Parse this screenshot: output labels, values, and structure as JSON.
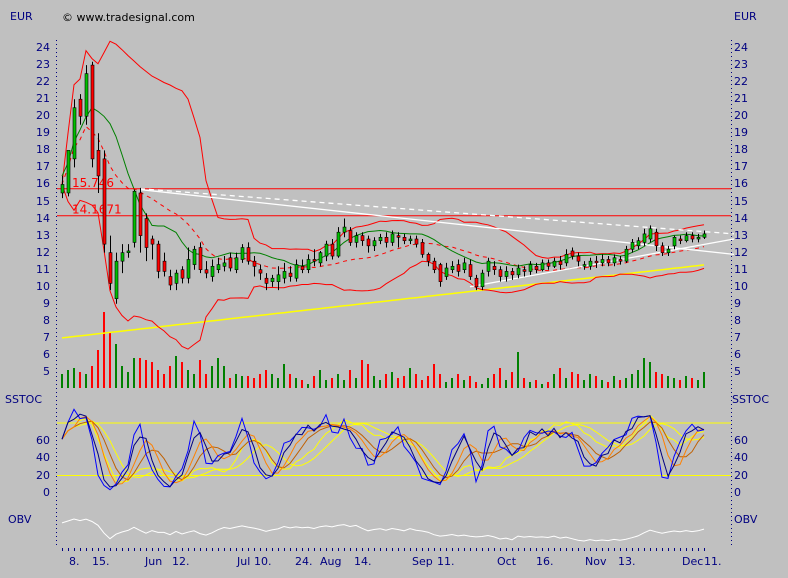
{
  "header": {
    "currency_left": "EUR",
    "currency_right": "EUR",
    "copyright": "© www.tradesignal.com"
  },
  "colors": {
    "background": "#c0c0c0",
    "axis_text": "#000080",
    "up_candle": "#00c000",
    "down_candle": "#ff0000",
    "bollinger": "#ff0000",
    "channel": "#008000",
    "long_average": "#ffff00",
    "trendline": "#ffffff",
    "stoch_fast": "#000080",
    "stoch_k": "#0000ff",
    "stoch_d": "#ff8000",
    "stoch_d2": "#c06000",
    "stoch_levels": "#ffff00",
    "obv": "#ffffff"
  },
  "chart_data": {
    "type": "candlestick",
    "y_ticks": [
      5,
      6,
      7,
      8,
      9,
      10,
      11,
      12,
      13,
      14,
      15,
      16,
      17,
      18,
      19,
      20,
      21,
      22,
      23,
      24
    ],
    "ylim": [
      4.2,
      25.5
    ],
    "x_tick_labels": [
      "8.",
      "15.",
      "Jun",
      "12.",
      "Jul",
      "10.",
      "24.",
      "Aug",
      "14.",
      "Sep",
      "11.",
      "Oct",
      "16.",
      "Nov",
      "13.",
      "Dec",
      "11."
    ],
    "candles_ohlc": [
      [
        15.5,
        16.5,
        15.2,
        16.0
      ],
      [
        15.5,
        18.0,
        15.3,
        18.0
      ],
      [
        17.5,
        21.0,
        17.0,
        20.5
      ],
      [
        21.0,
        21.3,
        19.5,
        20.0
      ],
      [
        20.0,
        23.0,
        19.5,
        22.5
      ],
      [
        23.0,
        23.2,
        17.0,
        17.5
      ],
      [
        18.0,
        19.0,
        15.5,
        16.5
      ],
      [
        17.5,
        18.0,
        12.0,
        12.5
      ],
      [
        12.0,
        13.0,
        9.8,
        10.2
      ],
      [
        9.3,
        12.0,
        9.0,
        11.5
      ],
      [
        11.5,
        12.5,
        10.8,
        12.0
      ],
      [
        12.0,
        12.5,
        11.7,
        12.1
      ],
      [
        12.6,
        15.7,
        12.3,
        15.6
      ],
      [
        15.5,
        15.8,
        12.0,
        13.0
      ],
      [
        14.0,
        14.3,
        11.5,
        12.3
      ],
      [
        12.8,
        13.0,
        11.6,
        12.5
      ],
      [
        12.5,
        12.7,
        10.5,
        10.9
      ],
      [
        11.5,
        12.0,
        10.6,
        10.9
      ],
      [
        10.6,
        11.0,
        9.8,
        10.1
      ],
      [
        10.2,
        11.0,
        9.8,
        10.8
      ],
      [
        11.0,
        11.2,
        10.2,
        10.5
      ],
      [
        10.5,
        12.3,
        10.2,
        11.6
      ],
      [
        11.3,
        12.4,
        11.0,
        12.2
      ],
      [
        12.3,
        12.6,
        10.8,
        11.0
      ],
      [
        11.0,
        11.5,
        10.5,
        10.8
      ],
      [
        10.6,
        11.6,
        10.3,
        11.2
      ],
      [
        11.0,
        11.7,
        10.8,
        11.3
      ],
      [
        11.2,
        11.8,
        10.9,
        11.4
      ],
      [
        11.7,
        12.0,
        10.9,
        11.1
      ],
      [
        11.0,
        12.0,
        10.8,
        11.7
      ],
      [
        11.6,
        12.5,
        11.4,
        12.3
      ],
      [
        12.3,
        12.6,
        11.3,
        11.5
      ],
      [
        11.5,
        11.8,
        10.6,
        11.2
      ],
      [
        11.0,
        11.3,
        10.4,
        10.8
      ],
      [
        10.5,
        10.8,
        9.8,
        10.2
      ],
      [
        10.3,
        10.7,
        10.0,
        10.5
      ],
      [
        10.3,
        11.2,
        9.8,
        10.7
      ],
      [
        10.5,
        11.4,
        10.2,
        10.9
      ],
      [
        10.8,
        11.2,
        10.3,
        10.6
      ],
      [
        10.5,
        11.6,
        10.3,
        11.3
      ],
      [
        11.2,
        11.6,
        10.8,
        11.0
      ],
      [
        11.0,
        11.9,
        10.8,
        11.6
      ],
      [
        11.6,
        12.2,
        11.2,
        11.5
      ],
      [
        11.4,
        12.1,
        11.2,
        12.0
      ],
      [
        11.8,
        12.7,
        11.5,
        12.5
      ],
      [
        12.5,
        12.8,
        11.6,
        11.8
      ],
      [
        11.8,
        13.5,
        11.7,
        13.2
      ],
      [
        13.2,
        14.0,
        12.9,
        13.5
      ],
      [
        13.3,
        13.5,
        12.4,
        12.6
      ],
      [
        12.6,
        13.2,
        12.3,
        13.0
      ],
      [
        13.0,
        13.2,
        12.4,
        12.7
      ],
      [
        12.8,
        13.0,
        12.0,
        12.4
      ],
      [
        12.4,
        12.9,
        12.1,
        12.7
      ],
      [
        12.7,
        13.1,
        12.5,
        12.9
      ],
      [
        12.9,
        13.2,
        12.3,
        12.6
      ],
      [
        12.6,
        13.3,
        12.4,
        13.1
      ],
      [
        13.0,
        13.2,
        12.3,
        12.9
      ],
      [
        12.9,
        13.1,
        12.5,
        12.7
      ],
      [
        12.7,
        13.0,
        12.5,
        12.8
      ],
      [
        12.8,
        13.0,
        12.3,
        12.5
      ],
      [
        12.6,
        12.8,
        11.7,
        11.9
      ],
      [
        11.9,
        12.0,
        11.2,
        11.5
      ],
      [
        11.5,
        11.7,
        10.8,
        11.0
      ],
      [
        11.3,
        11.4,
        10.0,
        10.3
      ],
      [
        10.6,
        11.4,
        10.4,
        11.1
      ],
      [
        11.0,
        11.5,
        10.8,
        11.2
      ],
      [
        11.3,
        11.6,
        10.6,
        10.9
      ],
      [
        11.0,
        11.7,
        10.8,
        11.4
      ],
      [
        11.3,
        11.6,
        10.4,
        10.6
      ],
      [
        10.5,
        10.7,
        9.8,
        10.0
      ],
      [
        10.0,
        11.0,
        9.8,
        10.8
      ],
      [
        10.9,
        11.7,
        10.6,
        11.5
      ],
      [
        11.2,
        11.5,
        10.7,
        11.0
      ],
      [
        11.0,
        11.2,
        10.3,
        10.6
      ],
      [
        10.6,
        11.2,
        10.3,
        10.9
      ],
      [
        10.9,
        11.1,
        10.4,
        10.7
      ],
      [
        10.7,
        11.3,
        10.5,
        11.1
      ],
      [
        11.0,
        11.2,
        10.6,
        10.9
      ],
      [
        10.9,
        11.5,
        10.7,
        11.3
      ],
      [
        11.2,
        11.4,
        10.8,
        11.0
      ],
      [
        11.0,
        11.6,
        10.9,
        11.4
      ],
      [
        11.4,
        11.6,
        11.0,
        11.2
      ],
      [
        11.2,
        11.7,
        11.1,
        11.5
      ],
      [
        11.5,
        11.8,
        11.0,
        11.3
      ],
      [
        11.4,
        12.2,
        11.2,
        11.9
      ],
      [
        12.1,
        12.3,
        11.6,
        11.8
      ],
      [
        11.8,
        12.0,
        11.2,
        11.5
      ],
      [
        11.2,
        11.5,
        11.0,
        11.3
      ],
      [
        11.2,
        11.7,
        11.0,
        11.5
      ],
      [
        11.5,
        11.8,
        11.1,
        11.4
      ],
      [
        11.4,
        11.9,
        11.2,
        11.6
      ],
      [
        11.6,
        11.8,
        11.2,
        11.4
      ],
      [
        11.4,
        11.9,
        11.2,
        11.7
      ],
      [
        11.6,
        11.8,
        11.3,
        11.5
      ],
      [
        11.5,
        12.4,
        11.4,
        12.2
      ],
      [
        12.2,
        12.8,
        12.0,
        12.6
      ],
      [
        12.4,
        12.9,
        12.2,
        12.7
      ],
      [
        12.6,
        13.4,
        12.4,
        13.1
      ],
      [
        12.8,
        13.6,
        12.6,
        13.4
      ],
      [
        13.2,
        13.4,
        12.1,
        12.4
      ],
      [
        12.4,
        12.6,
        11.8,
        12.0
      ],
      [
        12.0,
        12.4,
        11.8,
        12.2
      ],
      [
        12.4,
        13.0,
        12.2,
        12.9
      ],
      [
        12.8,
        13.0,
        12.5,
        12.7
      ],
      [
        12.7,
        13.2,
        12.6,
        13.0
      ],
      [
        13.0,
        13.2,
        12.6,
        12.8
      ],
      [
        12.8,
        13.1,
        12.6,
        12.9
      ],
      [
        12.9,
        13.3,
        12.8,
        13.1
      ]
    ],
    "volume": [
      14,
      18,
      20,
      16,
      14,
      22,
      38,
      76,
      55,
      44,
      22,
      16,
      30,
      30,
      28,
      26,
      18,
      14,
      22,
      32,
      26,
      18,
      14,
      28,
      14,
      22,
      30,
      22,
      10,
      14,
      12,
      12,
      10,
      14,
      18,
      14,
      10,
      24,
      14,
      10,
      8,
      4,
      12,
      18,
      8,
      10,
      14,
      8,
      18,
      10,
      28,
      24,
      12,
      8,
      14,
      16,
      10,
      12,
      20,
      14,
      8,
      12,
      24,
      14,
      6,
      10,
      14,
      8,
      12,
      6,
      4,
      10,
      14,
      20,
      8,
      16,
      36,
      10,
      6,
      8,
      4,
      6,
      14,
      20,
      10,
      16,
      14,
      8,
      14,
      12,
      8,
      6,
      12,
      8,
      10,
      14,
      18,
      30,
      26,
      16,
      14,
      12,
      10,
      8,
      12,
      10,
      8,
      16
    ],
    "horizontal_lines": [
      {
        "value": 15.746,
        "label": "15.746",
        "color": "#ff0000"
      },
      {
        "value": 14.1671,
        "label": "14.1671",
        "color": "#ff0000"
      }
    ],
    "trendlines_bar_price": [
      {
        "from": [
          13,
          15.75
        ],
        "to": [
          112,
          13.1
        ],
        "style": "dashed"
      },
      {
        "from": [
          13,
          15.7
        ],
        "to": [
          112,
          11.9
        ],
        "style": "solid"
      },
      {
        "from": [
          68,
          10.0
        ],
        "to": [
          112,
          12.8
        ],
        "style": "solid"
      }
    ],
    "indicators": {
      "sstoc": {
        "label": "SSTOC",
        "ticks": [
          0,
          20,
          40,
          60
        ],
        "levels": [
          20,
          80
        ]
      },
      "obv": {
        "label": "OBV"
      }
    }
  }
}
